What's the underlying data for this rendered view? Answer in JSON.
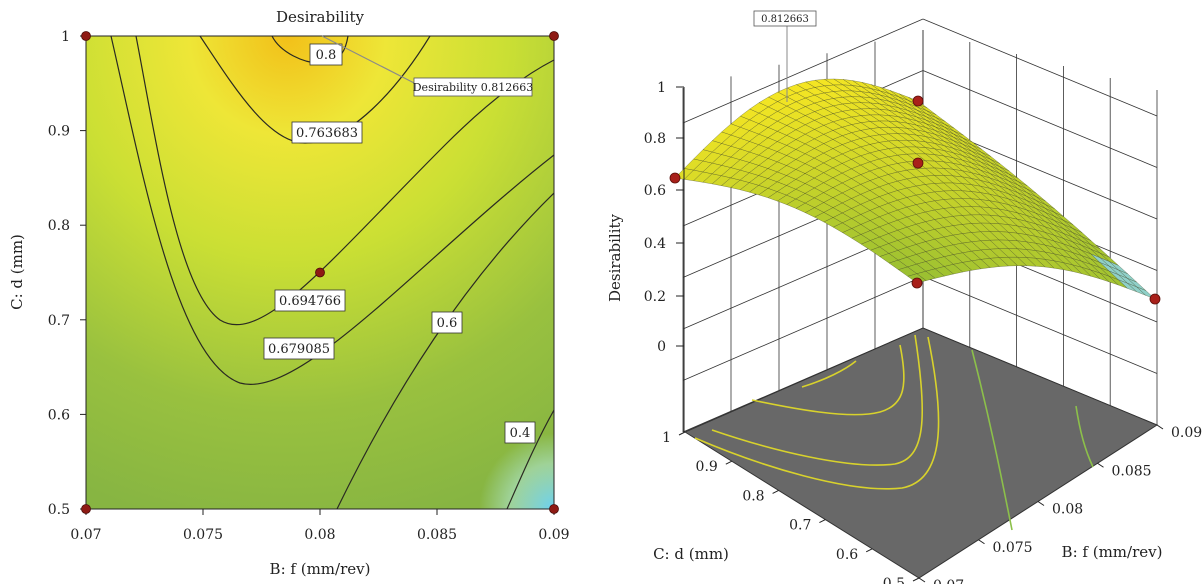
{
  "chart_data": [
    {
      "type": "contour",
      "title": "Desirability",
      "xlabel": "B: f (mm/rev)",
      "ylabel": "C: d (mm)",
      "xlim": [
        0.07,
        0.09
      ],
      "ylim": [
        0.5,
        1
      ],
      "x_ticks": [
        "0.07",
        "0.075",
        "0.08",
        "0.085",
        "0.09"
      ],
      "y_ticks": [
        "0.5",
        "0.6",
        "0.7",
        "0.8",
        "0.9",
        "1"
      ],
      "contour_levels": [
        {
          "label": "0.8",
          "value": 0.8
        },
        {
          "label": "0.763683",
          "value": 0.763683
        },
        {
          "label": "0.694766",
          "value": 0.694766
        },
        {
          "label": "0.679085",
          "value": 0.679085
        },
        {
          "label": "0.6",
          "value": 0.6
        },
        {
          "label": "0.4",
          "value": 0.4
        }
      ],
      "design_points": [
        {
          "x": 0.07,
          "y": 1
        },
        {
          "x": 0.09,
          "y": 1
        },
        {
          "x": 0.07,
          "y": 0.5
        },
        {
          "x": 0.09,
          "y": 0.5
        },
        {
          "x": 0.08,
          "y": 0.75
        }
      ],
      "annotation": {
        "text": "Desirability 0.812663",
        "x": 0.08,
        "y": 1,
        "value": 0.812663
      }
    },
    {
      "type": "surface3d",
      "zlabel": "Desirability",
      "xlabel": "B: f (mm/rev)",
      "ylabel": "C: d (mm)",
      "xlim": [
        0.07,
        0.09
      ],
      "ylim": [
        0.5,
        1
      ],
      "zlim": [
        0,
        1
      ],
      "z_ticks": [
        "0",
        "0.2",
        "0.4",
        "0.6",
        "0.8",
        "1"
      ],
      "x_ticks": [
        "0.07",
        "0.075",
        "0.08",
        "0.085",
        "0.09"
      ],
      "y_ticks": [
        "0.5",
        "0.6",
        "0.7",
        "0.8",
        "0.9",
        "1"
      ],
      "annotation": {
        "text": "0.812663",
        "value": 0.812663
      },
      "design_points": [
        {
          "x": 0.07,
          "y": 1,
          "z": 0.66
        },
        {
          "x": 0.09,
          "y": 1,
          "z": 0.96
        },
        {
          "x": 0.08,
          "y": 0.75,
          "z": 0.78
        },
        {
          "x": 0.07,
          "y": 0.5,
          "z": 0.2
        },
        {
          "x": 0.09,
          "y": 0.5,
          "z": 0.2
        }
      ]
    }
  ]
}
